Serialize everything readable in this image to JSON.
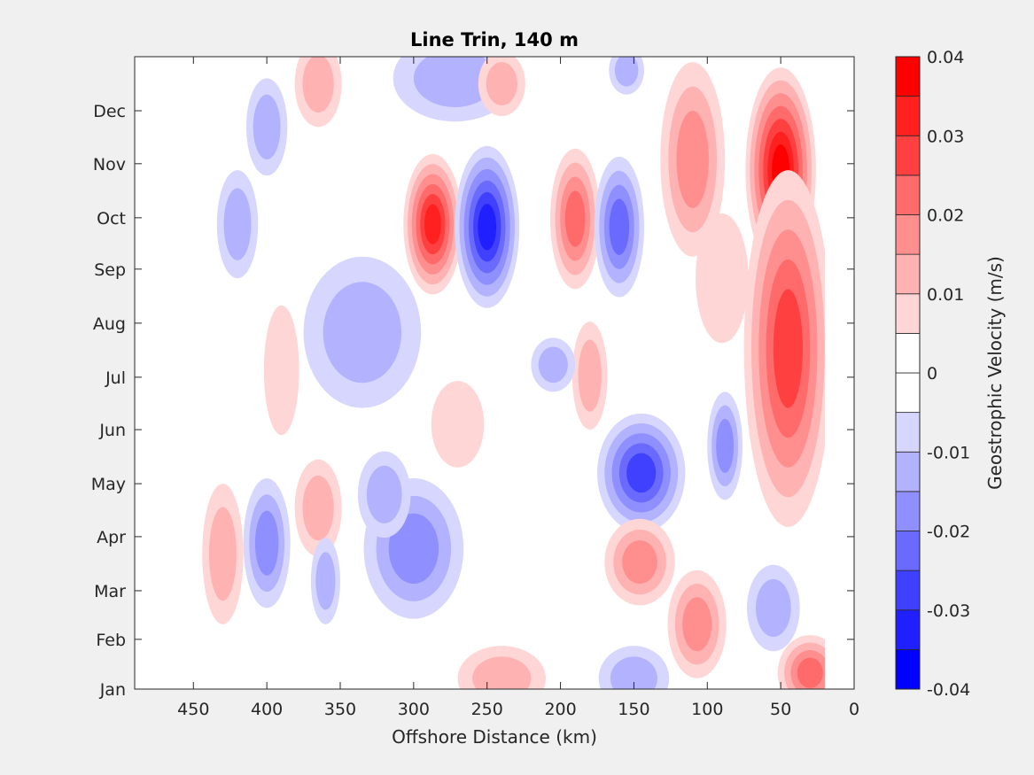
{
  "chart_data": {
    "type": "heatmap",
    "subtype": "filled-contour",
    "title": "Line Trin, 140 m",
    "xlabel": "Offshore Distance (km)",
    "ylabel": "",
    "xlim": [
      490,
      0
    ],
    "x_reversed": true,
    "xticks": [
      450,
      400,
      350,
      300,
      250,
      200,
      150,
      100,
      50,
      0
    ],
    "xtick_labels": [
      "450",
      "400",
      "350",
      "300",
      "250",
      "200",
      "150",
      "100",
      "50",
      "0"
    ],
    "ylim_months": [
      1,
      12.7
    ],
    "yticks": [
      1,
      1.92,
      2.82,
      3.82,
      4.8,
      5.8,
      6.77,
      7.77,
      8.77,
      9.72,
      10.72,
      11.7
    ],
    "ytick_labels": [
      "Jan",
      "Feb",
      "Mar",
      "Apr",
      "May",
      "Jun",
      "Jul",
      "Aug",
      "Sep",
      "Oct",
      "Nov",
      "Dec"
    ],
    "colorbar": {
      "label": "Geostrophic Velocity (m/s)",
      "range": [
        -0.04,
        0.04
      ],
      "levels": [
        -0.04,
        -0.035,
        -0.03,
        -0.025,
        -0.02,
        -0.015,
        -0.01,
        -0.005,
        0,
        0.005,
        0.01,
        0.015,
        0.02,
        0.025,
        0.03,
        0.035,
        0.04
      ],
      "tick_values": [
        0.04,
        0.03,
        0.02,
        0.01,
        0,
        -0.01,
        -0.02,
        -0.03,
        -0.04
      ],
      "tick_labels": [
        "0.04",
        "0.03",
        "0.02",
        "0.01",
        "0",
        "-0.01",
        "-0.02",
        "-0.03",
        "-0.04"
      ],
      "colors_low_to_high": [
        "#0000ff",
        "#2020ff",
        "#4040ff",
        "#6a6aff",
        "#8f8fff",
        "#b2b2ff",
        "#d6d6ff",
        "#ffffff",
        "#ffffff",
        "#ffd6d6",
        "#ffb2b2",
        "#ff8f8f",
        "#ff6a6a",
        "#ff4040",
        "#ff2020",
        "#ff0000"
      ]
    },
    "grid": false,
    "features": [
      {
        "km": 287,
        "month": 9.6,
        "rkm": 20,
        "rm": 1.3,
        "peak": 0.033
      },
      {
        "km": 250,
        "month": 9.55,
        "rkm": 22,
        "rm": 1.5,
        "peak": -0.033
      },
      {
        "km": 190,
        "month": 9.7,
        "rkm": 17,
        "rm": 1.3,
        "peak": 0.02
      },
      {
        "km": 160,
        "month": 9.55,
        "rkm": 17,
        "rm": 1.3,
        "peak": -0.022
      },
      {
        "km": 50,
        "month": 10.6,
        "rkm": 24,
        "rm": 1.9,
        "peak": 0.037
      },
      {
        "km": 45,
        "month": 7.3,
        "rkm": 30,
        "rm": 3.3,
        "peak": 0.026
      },
      {
        "km": 110,
        "month": 10.8,
        "rkm": 22,
        "rm": 1.8,
        "peak": 0.019
      },
      {
        "km": 90,
        "month": 8.6,
        "rkm": 18,
        "rm": 1.2,
        "peak": 0.008
      },
      {
        "km": 145,
        "month": 5.0,
        "rkm": 30,
        "rm": 1.1,
        "peak": -0.026
      },
      {
        "km": 88,
        "month": 5.5,
        "rkm": 12,
        "rm": 1.0,
        "peak": -0.016
      },
      {
        "km": 146,
        "month": 3.35,
        "rkm": 24,
        "rm": 0.8,
        "peak": 0.016
      },
      {
        "km": 107,
        "month": 2.2,
        "rkm": 20,
        "rm": 1.0,
        "peak": 0.019
      },
      {
        "km": 55,
        "month": 2.5,
        "rkm": 18,
        "rm": 0.8,
        "peak": -0.014
      },
      {
        "km": 30,
        "month": 1.3,
        "rkm": 22,
        "rm": 0.7,
        "peak": 0.02
      },
      {
        "km": 150,
        "month": 1.2,
        "rkm": 24,
        "rm": 0.6,
        "peak": -0.013
      },
      {
        "km": 240,
        "month": 1.2,
        "rkm": 30,
        "rm": 0.6,
        "peak": 0.012
      },
      {
        "km": 300,
        "month": 3.6,
        "rkm": 34,
        "rm": 1.3,
        "peak": -0.019
      },
      {
        "km": 320,
        "month": 4.6,
        "rkm": 18,
        "rm": 0.8,
        "peak": -0.012
      },
      {
        "km": 335,
        "month": 7.6,
        "rkm": 40,
        "rm": 1.4,
        "peak": -0.013
      },
      {
        "km": 272,
        "month": 12.3,
        "rkm": 42,
        "rm": 0.8,
        "peak": -0.013
      },
      {
        "km": 240,
        "month": 12.2,
        "rkm": 16,
        "rm": 0.6,
        "peak": 0.01
      },
      {
        "km": 155,
        "month": 12.45,
        "rkm": 12,
        "rm": 0.45,
        "peak": -0.011
      },
      {
        "km": 365,
        "month": 12.2,
        "rkm": 16,
        "rm": 0.8,
        "peak": 0.011
      },
      {
        "km": 400,
        "month": 11.4,
        "rkm": 14,
        "rm": 0.9,
        "peak": -0.011
      },
      {
        "km": 420,
        "month": 9.6,
        "rkm": 14,
        "rm": 1.0,
        "peak": -0.012
      },
      {
        "km": 400,
        "month": 3.7,
        "rkm": 16,
        "rm": 1.2,
        "peak": -0.018
      },
      {
        "km": 430,
        "month": 3.5,
        "rkm": 14,
        "rm": 1.3,
        "peak": 0.013
      },
      {
        "km": 365,
        "month": 4.35,
        "rkm": 16,
        "rm": 0.9,
        "peak": 0.012
      },
      {
        "km": 360,
        "month": 3.0,
        "rkm": 10,
        "rm": 0.8,
        "peak": -0.012
      },
      {
        "km": 270,
        "month": 5.9,
        "rkm": 18,
        "rm": 0.8,
        "peak": 0.008
      },
      {
        "km": 390,
        "month": 6.9,
        "rkm": 12,
        "rm": 1.2,
        "peak": 0.007
      },
      {
        "km": 180,
        "month": 6.8,
        "rkm": 12,
        "rm": 1.0,
        "peak": 0.011
      },
      {
        "km": 205,
        "month": 7.0,
        "rkm": 15,
        "rm": 0.5,
        "peak": -0.012
      }
    ]
  }
}
